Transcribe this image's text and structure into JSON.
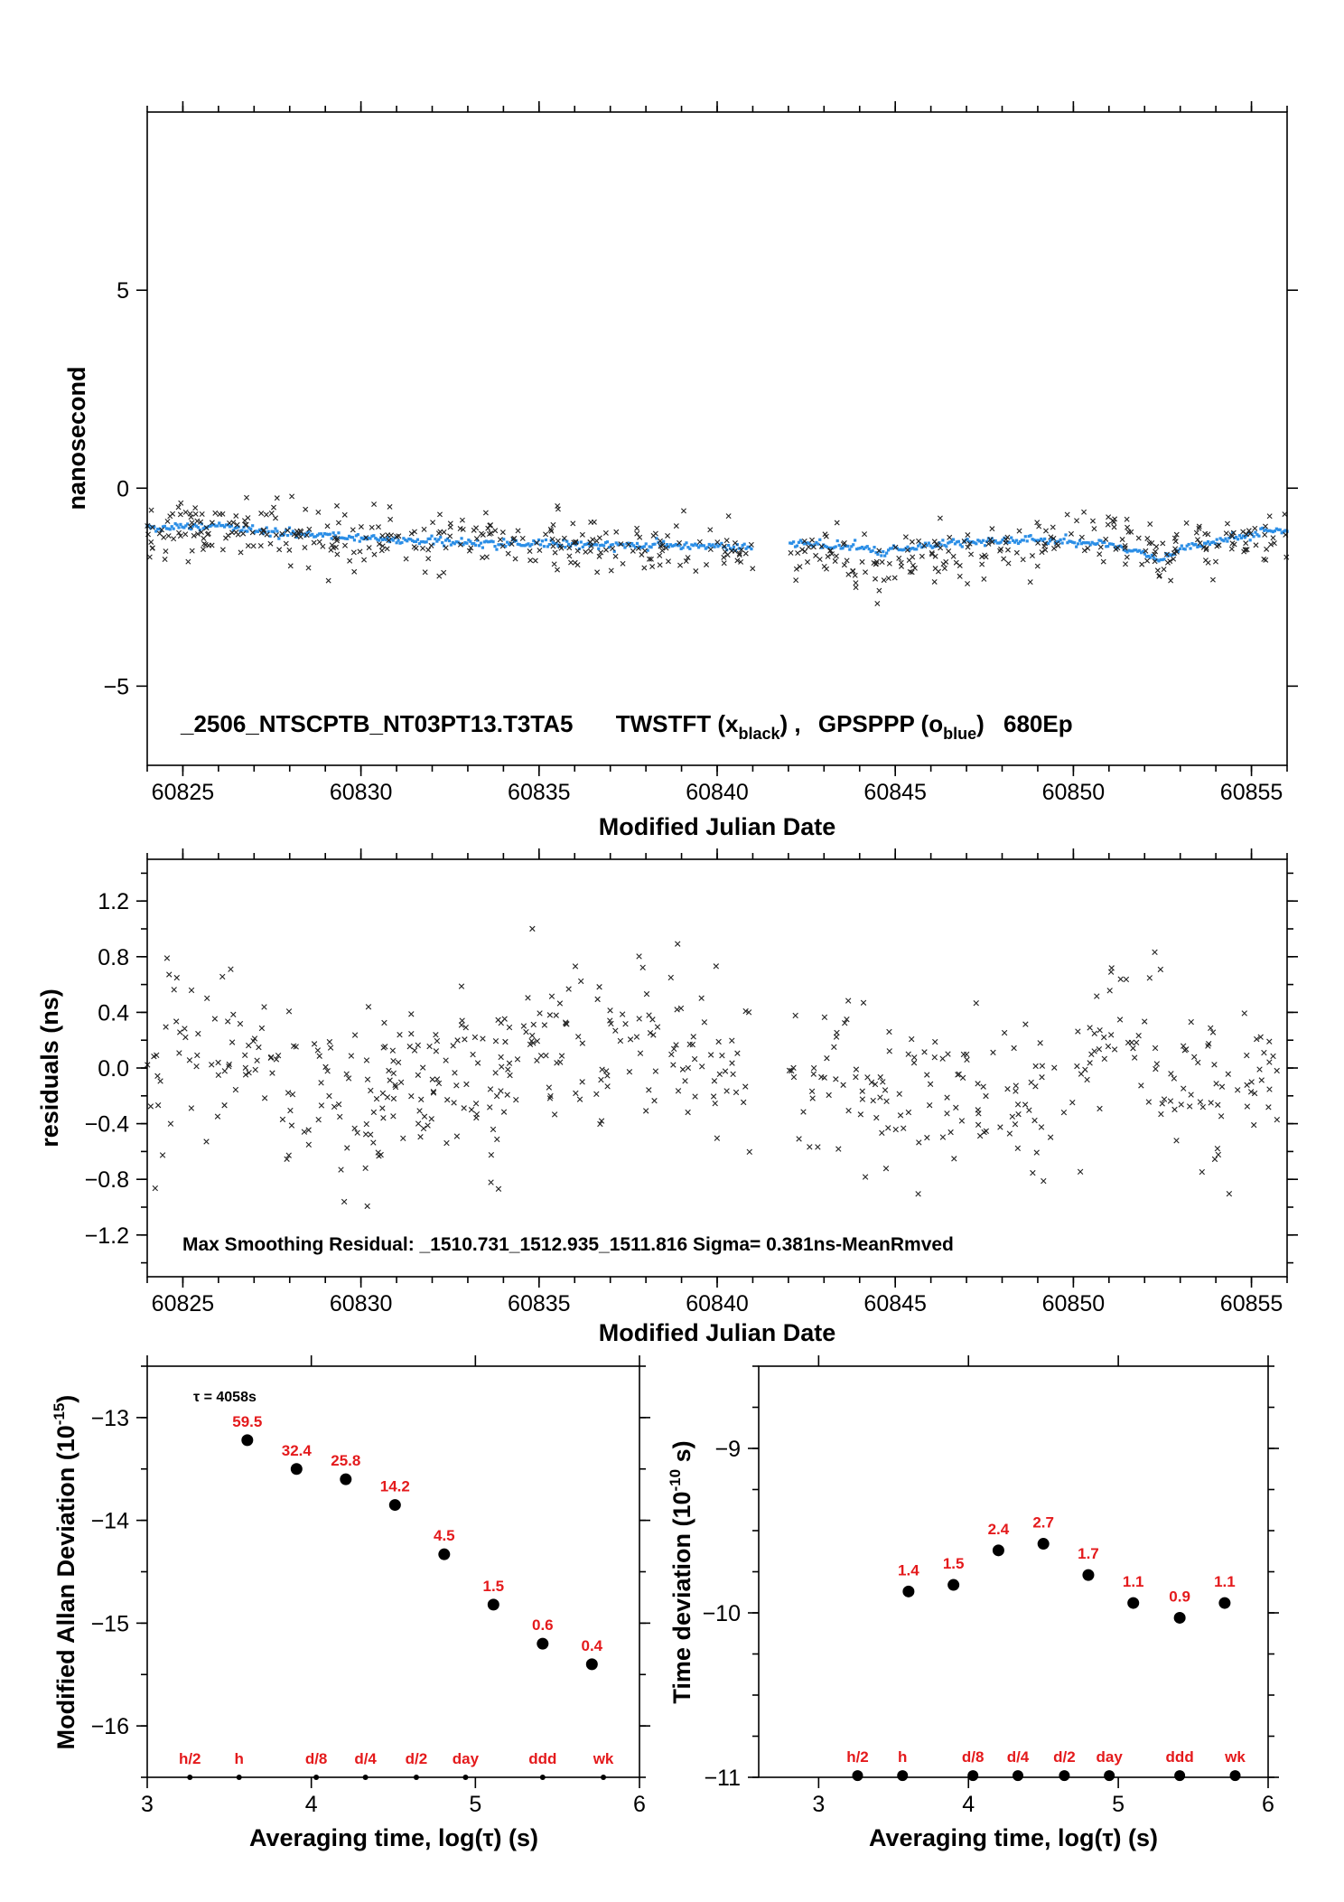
{
  "chart_data": [
    {
      "type": "scatter",
      "id": "phase",
      "ylabel": "nanosecond",
      "xlabel": "Modified Julian Date",
      "xlim": [
        60824,
        60856
      ],
      "ylim": [
        -7,
        9.5
      ],
      "xticks": [
        60825,
        60830,
        60835,
        60840,
        60845,
        60850,
        60855
      ],
      "yticks": [
        -5,
        0,
        5
      ],
      "annotation": {
        "name": "_2506_NTSCPTB_NT03PT13.T3TA5",
        "tw": "TWSTFT (x",
        "tw_sub": "black",
        "tw_end": ") ,",
        "gp": "GPSPPP (o",
        "gp_sub": "blue",
        "gp_end": ")",
        "ep": "680Ep"
      },
      "gap": [
        60841.0,
        60842.0
      ],
      "series": [
        {
          "marker": "x",
          "color": "#000000",
          "approx": true,
          "trend": [
            [
              60824,
              -1.1
            ],
            [
              60825,
              -1.0
            ],
            [
              60826,
              -1.05
            ],
            [
              60827,
              -1.05
            ],
            [
              60828,
              -1.15
            ],
            [
              60830,
              -1.25
            ],
            [
              60832,
              -1.35
            ],
            [
              60835,
              -1.45
            ],
            [
              60838,
              -1.5
            ],
            [
              60841,
              -1.6
            ],
            [
              60842,
              -1.7
            ],
            [
              60843,
              -1.75
            ],
            [
              60844,
              -1.95
            ],
            [
              60846,
              -1.7
            ],
            [
              60848,
              -1.5
            ],
            [
              60850,
              -1.4
            ],
            [
              60851,
              -1.3
            ],
            [
              60852,
              -1.6
            ],
            [
              60853,
              -1.55
            ],
            [
              60854,
              -1.5
            ],
            [
              60856,
              -1.35
            ]
          ],
          "spread": 0.35,
          "count": 560
        },
        {
          "marker": "o",
          "color": "#2b8ee6",
          "approx": true,
          "trend": [
            [
              60824,
              -1.0
            ],
            [
              60826,
              -0.95
            ],
            [
              60827,
              -1.05
            ],
            [
              60828,
              -1.15
            ],
            [
              60830,
              -1.25
            ],
            [
              60832,
              -1.35
            ],
            [
              60835,
              -1.4
            ],
            [
              60838,
              -1.45
            ],
            [
              60841,
              -1.5
            ],
            [
              60842,
              -1.4
            ],
            [
              60843,
              -1.45
            ],
            [
              60844,
              -1.5
            ],
            [
              60844.6,
              -1.65
            ],
            [
              60845,
              -1.55
            ],
            [
              60847,
              -1.35
            ],
            [
              60849,
              -1.3
            ],
            [
              60851,
              -1.4
            ],
            [
              60852,
              -1.7
            ],
            [
              60852.5,
              -1.8
            ],
            [
              60853,
              -1.55
            ],
            [
              60854,
              -1.35
            ],
            [
              60855,
              -1.15
            ],
            [
              60856,
              -1.05
            ]
          ],
          "spread": 0.05,
          "count": 650
        }
      ]
    },
    {
      "type": "scatter",
      "id": "residuals",
      "ylabel": "residuals (ns)",
      "xlabel": "Modified Julian Date",
      "xlim": [
        60824,
        60856
      ],
      "ylim": [
        -1.5,
        1.5
      ],
      "xticks": [
        60825,
        60830,
        60835,
        60840,
        60845,
        60850,
        60855
      ],
      "yticks": [
        -1.2,
        -0.8,
        -0.4,
        0.0,
        0.4,
        0.8,
        1.2
      ],
      "ytick_labels": [
        "−1.2",
        "−0.8",
        "−0.4",
        "0.0",
        "0.4",
        "0.8",
        "1.2"
      ],
      "annotation": "Max Smoothing Residual: _1510.731_1512.935_1511.816  Sigma= 0.381ns-MeanRmved",
      "sigma": 0.381,
      "gap": [
        60841.0,
        60842.0
      ],
      "series": [
        {
          "marker": "x",
          "color": "#000000",
          "approx": true,
          "count": 560,
          "max": 1.12,
          "min": -1.1
        }
      ]
    },
    {
      "type": "scatter",
      "id": "mdev",
      "ylabel": "Modified Allan Deviation (10",
      "ylabel_sup": "-15",
      "ylabel_end": ")",
      "xlabel": "Averaging time, log(τ) (s)",
      "xlim": [
        3,
        6
      ],
      "ylim": [
        -16.5,
        -12.5
      ],
      "xticks": [
        3,
        4,
        5,
        6
      ],
      "yticks": [
        -16,
        -15,
        -14,
        -13
      ],
      "ytick_labels": [
        "−16",
        "−15",
        "−14",
        "−13"
      ],
      "tau_note": "τ = 4058s",
      "x": [
        3.61,
        3.91,
        4.21,
        4.51,
        4.81,
        5.11,
        5.41,
        5.71
      ],
      "y": [
        -13.22,
        -13.5,
        -13.6,
        -13.85,
        -14.33,
        -14.82,
        -15.2,
        -15.4
      ],
      "point_labels": [
        "59.5",
        "32.4",
        "25.8",
        "14.2",
        "4.5",
        "1.5",
        "0.6",
        "0.4"
      ],
      "ref_markers": {
        "labels": [
          "h/2",
          "h",
          "d/8",
          "d/4",
          "d/2",
          "day",
          "ddd",
          "wk"
        ],
        "x": [
          3.26,
          3.56,
          4.03,
          4.33,
          4.64,
          4.94,
          5.41,
          5.78
        ]
      }
    },
    {
      "type": "scatter",
      "id": "tdev",
      "ylabel": "Time deviation (10",
      "ylabel_sup": "-10",
      "ylabel_end": " s)",
      "xlabel": "Averaging time, log(τ) (s)",
      "xlim": [
        2.6,
        6.0
      ],
      "ylim": [
        -11.0,
        -8.5
      ],
      "xticks": [
        3,
        4,
        5,
        6
      ],
      "yticks": [
        -11,
        -10,
        -9
      ],
      "ytick_labels": [
        "−11",
        "−10",
        "−9"
      ],
      "x": [
        3.6,
        3.9,
        4.2,
        4.5,
        4.8,
        5.1,
        5.41,
        5.71
      ],
      "y": [
        -9.87,
        -9.83,
        -9.62,
        -9.58,
        -9.77,
        -9.94,
        -10.03,
        -9.94
      ],
      "point_labels": [
        "1.4",
        "1.5",
        "2.4",
        "2.7",
        "1.7",
        "1.1",
        "0.9",
        "1.1"
      ],
      "ref_markers": {
        "labels": [
          "h/2",
          "h",
          "d/8",
          "d/4",
          "d/2",
          "day",
          "ddd",
          "wk"
        ],
        "x": [
          3.26,
          3.56,
          4.03,
          4.33,
          4.64,
          4.94,
          5.41,
          5.78
        ]
      }
    }
  ]
}
